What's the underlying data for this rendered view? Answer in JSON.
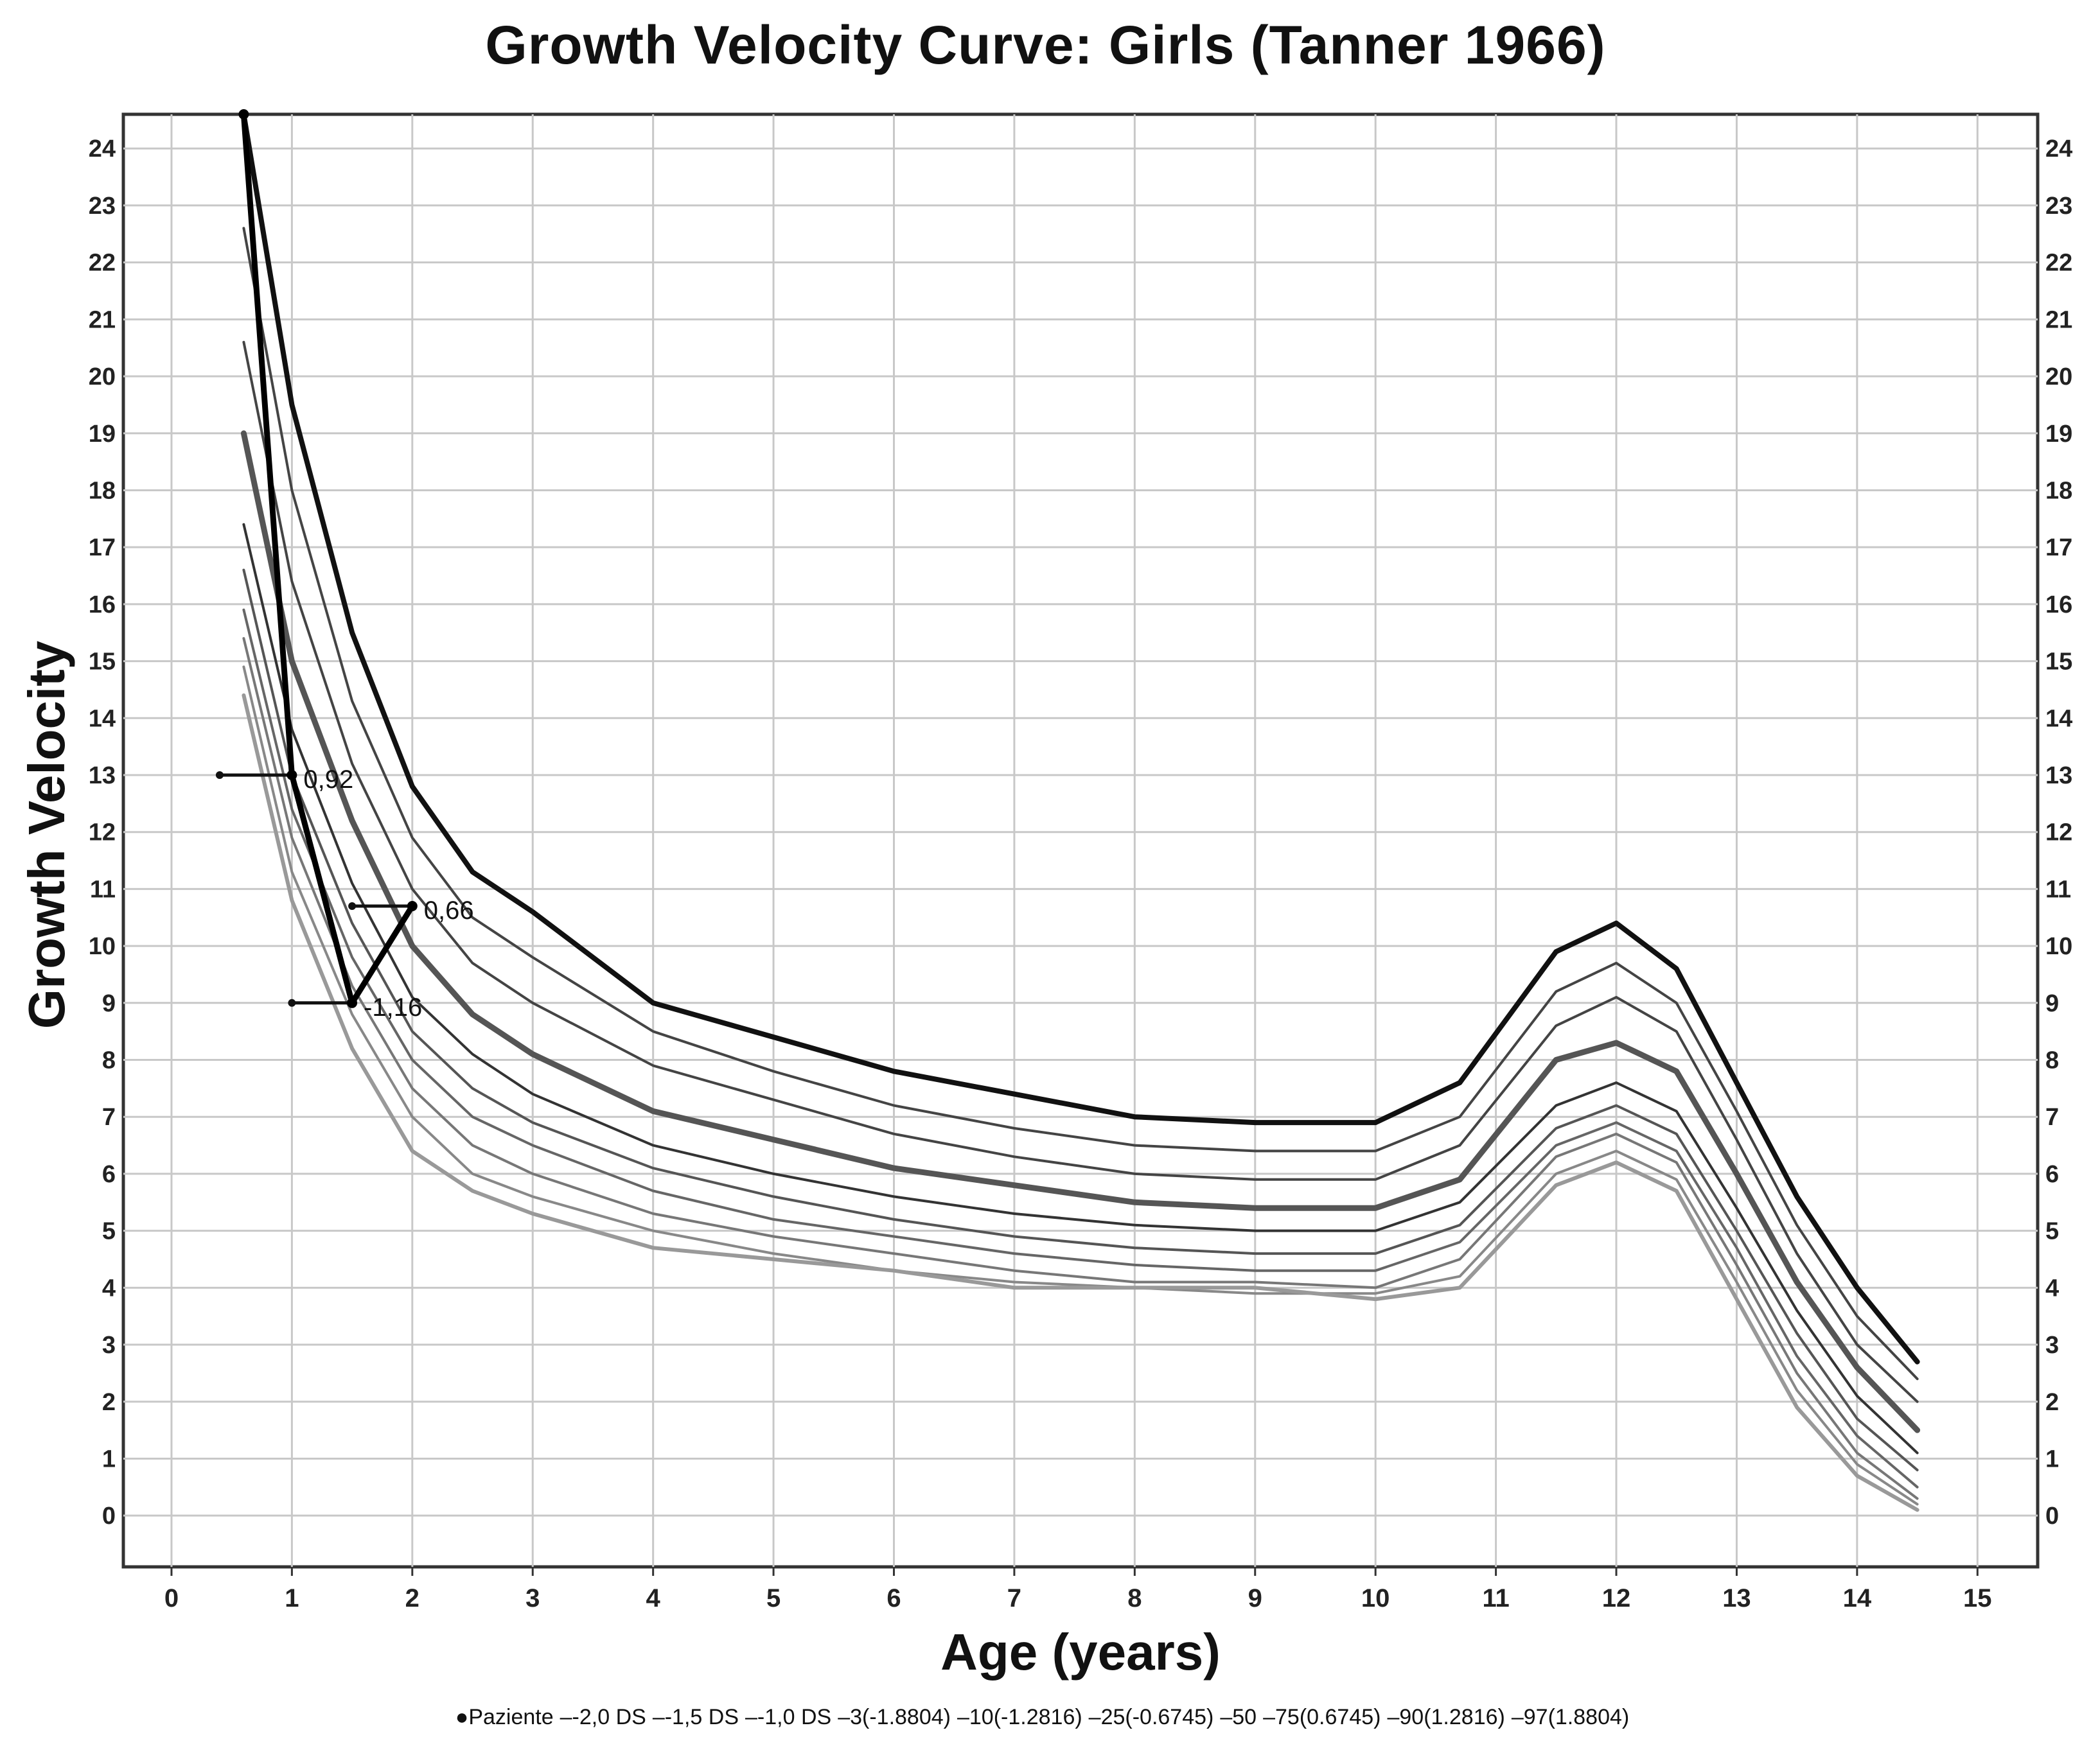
{
  "chart_data": {
    "type": "line",
    "title": "Growth Velocity Curve: Girls (Tanner 1966)",
    "xlabel": "Age (years)",
    "ylabel": "Growth Velocity",
    "xlim": [
      -0.4,
      15.5
    ],
    "ylim": [
      -0.9,
      24.6
    ],
    "xticks": [
      "0",
      "1",
      "2",
      "3",
      "4",
      "5",
      "6",
      "7",
      "8",
      "9",
      "10",
      "11",
      "12",
      "13",
      "14",
      "15"
    ],
    "yticks": [
      "0",
      "1",
      "2",
      "3",
      "4",
      "5",
      "6",
      "7",
      "8",
      "9",
      "10",
      "11",
      "12",
      "13",
      "14",
      "15",
      "16",
      "17",
      "18",
      "19",
      "20",
      "21",
      "22",
      "23",
      "24"
    ],
    "grid": true,
    "x": [
      0.6,
      1.0,
      1.5,
      2.0,
      2.5,
      3.0,
      4.0,
      5.0,
      6.0,
      7.0,
      8.0,
      9.0,
      10.0,
      10.7,
      11.5,
      12.0,
      12.5,
      13.0,
      13.5,
      14.0,
      14.5
    ],
    "series": [
      {
        "name": "97(1.8804)",
        "values": [
          24.6,
          19.5,
          15.5,
          12.8,
          11.3,
          10.6,
          9.0,
          8.4,
          7.8,
          7.4,
          7.0,
          6.9,
          6.9,
          7.6,
          9.9,
          10.4,
          9.6,
          7.6,
          5.6,
          4.0,
          2.7
        ]
      },
      {
        "name": "90(1.2816)",
        "values": [
          22.6,
          18.0,
          14.3,
          11.9,
          10.5,
          9.8,
          8.5,
          7.8,
          7.2,
          6.8,
          6.5,
          6.4,
          6.4,
          7.0,
          9.2,
          9.7,
          9.0,
          7.1,
          5.1,
          3.5,
          2.4
        ]
      },
      {
        "name": "75(0.6745)",
        "values": [
          20.6,
          16.4,
          13.2,
          11.0,
          9.7,
          9.0,
          7.9,
          7.3,
          6.7,
          6.3,
          6.0,
          5.9,
          5.9,
          6.5,
          8.6,
          9.1,
          8.5,
          6.6,
          4.6,
          3.0,
          2.0
        ]
      },
      {
        "name": "50",
        "values": [
          19.0,
          15.0,
          12.2,
          10.0,
          8.8,
          8.1,
          7.1,
          6.6,
          6.1,
          5.8,
          5.5,
          5.4,
          5.4,
          5.9,
          8.0,
          8.3,
          7.8,
          6.0,
          4.1,
          2.6,
          1.5
        ]
      },
      {
        "name": "25(-0.6745)",
        "values": [
          17.4,
          13.8,
          11.1,
          9.1,
          8.1,
          7.4,
          6.5,
          6.0,
          5.6,
          5.3,
          5.1,
          5.0,
          5.0,
          5.5,
          7.2,
          7.6,
          7.1,
          5.4,
          3.6,
          2.1,
          1.1
        ]
      },
      {
        "name": "10(-1.2816)",
        "values": [
          16.6,
          13.0,
          10.4,
          8.5,
          7.5,
          6.9,
          6.1,
          5.6,
          5.2,
          4.9,
          4.7,
          4.6,
          4.6,
          5.1,
          6.8,
          7.2,
          6.7,
          5.0,
          3.2,
          1.7,
          0.8
        ]
      },
      {
        "name": "3(-1.8804)",
        "values": [
          15.9,
          12.4,
          9.8,
          8.0,
          7.0,
          6.5,
          5.7,
          5.2,
          4.9,
          4.6,
          4.4,
          4.3,
          4.3,
          4.8,
          6.5,
          6.9,
          6.4,
          4.7,
          2.8,
          1.4,
          0.5
        ]
      },
      {
        "name": "-1,0 DS",
        "values": [
          15.4,
          11.9,
          9.3,
          7.5,
          6.5,
          6.0,
          5.3,
          4.9,
          4.6,
          4.3,
          4.1,
          4.1,
          4.0,
          4.5,
          6.3,
          6.7,
          6.2,
          4.4,
          2.5,
          1.1,
          0.3
        ]
      },
      {
        "name": "-1,5 DS",
        "values": [
          14.9,
          11.3,
          8.8,
          7.0,
          6.0,
          5.6,
          5.0,
          4.6,
          4.3,
          4.1,
          4.0,
          3.9,
          3.9,
          4.2,
          6.0,
          6.4,
          5.9,
          4.1,
          2.2,
          0.9,
          0.2
        ]
      },
      {
        "name": "-2,0 DS",
        "values": [
          14.4,
          10.8,
          8.2,
          6.4,
          5.7,
          5.3,
          4.7,
          4.5,
          4.3,
          4.0,
          4.0,
          4.0,
          3.8,
          4.0,
          5.8,
          6.2,
          5.7,
          3.8,
          1.9,
          0.7,
          0.1
        ]
      }
    ],
    "patient": {
      "name": "Paziente",
      "points": [
        {
          "x": 0.6,
          "y": 24.6,
          "label": ""
        },
        {
          "x": 1.0,
          "y": 13.0,
          "label": "0,92"
        },
        {
          "x": 1.5,
          "y": 9.0,
          "label": "-1,16"
        },
        {
          "x": 2.0,
          "y": 10.7,
          "label": "0,66"
        }
      ],
      "error_bars": [
        {
          "x0": 0.4,
          "x1": 1.0,
          "y": 13.0
        },
        {
          "x0": 1.0,
          "x1": 1.5,
          "y": 9.0
        },
        {
          "x0": 1.5,
          "x1": 2.0,
          "y": 10.7
        }
      ]
    },
    "legend": [
      "Paziente",
      "-2,0 DS",
      "-1,5 DS",
      "-1,0 DS",
      "3(-1.8804)",
      "10(-1.2816)",
      "25(-0.6745)",
      "50",
      "75(0.6745)",
      "90(1.2816)",
      "97(1.8804)"
    ],
    "legend_position": "bottom"
  }
}
